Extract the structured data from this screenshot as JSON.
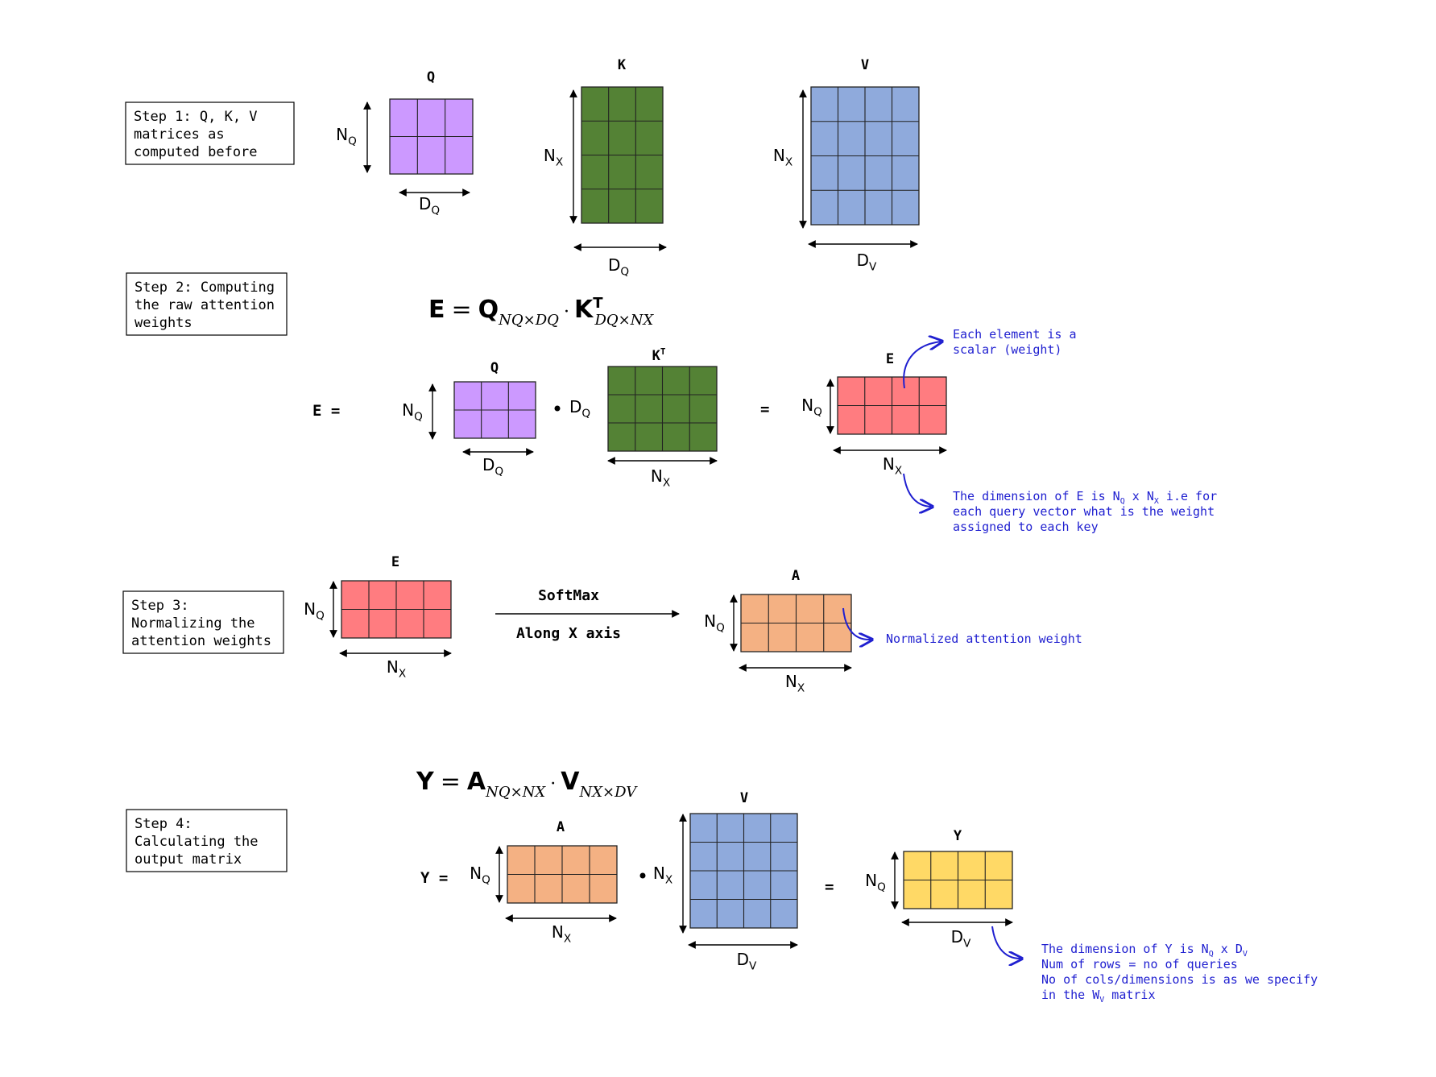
{
  "colors": {
    "q": "#cc99ff",
    "k": "#548235",
    "v": "#8faadc",
    "e": "#ff7c80",
    "a": "#f4b183",
    "y": "#ffd966",
    "note": "#1f1fd0",
    "line": "#000000"
  },
  "steps": [
    {
      "id": "step1",
      "lines": [
        "Step 1: Q, K, V",
        "matrices as",
        "computed before"
      ]
    },
    {
      "id": "step2",
      "lines": [
        "Step 2: Computing",
        "the raw attention",
        "weights"
      ]
    },
    {
      "id": "step3",
      "lines": [
        "Step 3:",
        "Normalizing the",
        "attention weights"
      ]
    },
    {
      "id": "step4",
      "lines": [
        "Step 4:",
        "Calculating the",
        "output matrix"
      ]
    }
  ],
  "symbols": {
    "N": "N",
    "D": "D",
    "Q": "Q",
    "X": "X",
    "V": "V",
    "dot": "•",
    "eq": "=",
    "T": "T"
  },
  "matrix_titles": {
    "q": "Q",
    "k": "K",
    "v": "V",
    "kt": "K",
    "e": "E",
    "a": "A",
    "y": "Y"
  },
  "matrix_shapes": {
    "q": {
      "rows": 2,
      "cols": 3
    },
    "k": {
      "rows": 4,
      "cols": 3
    },
    "v": {
      "rows": 4,
      "cols": 4
    },
    "kt": {
      "rows": 3,
      "cols": 4
    },
    "e": {
      "rows": 2,
      "cols": 4
    },
    "a": {
      "rows": 2,
      "cols": 4
    },
    "y": {
      "rows": 2,
      "cols": 4
    }
  },
  "equations": {
    "e_lhs": "E =",
    "y_lhs": "Y =",
    "eq2": {
      "lhs": "E",
      "a": "Q",
      "a_sub": "N_Q×D_Q",
      "b": "K",
      "b_sup": "T",
      "b_sub": "D_Q×N_X"
    },
    "eq4": {
      "lhs": "Y",
      "a": "A",
      "a_sub": "N_Q×N_X",
      "b": "V",
      "b_sub": "N_X×D_V"
    }
  },
  "softmax": {
    "label": "SoftMax",
    "sublabel": "Along X axis"
  },
  "notes": {
    "e_element": [
      "Each element is a",
      "scalar (weight)"
    ],
    "e_dimension": [
      "The dimension of E is N_Q x N_X i.e for",
      "each query vector what is the weight",
      "assigned to each key"
    ],
    "a_norm": "Normalized attention weight",
    "y_dimension": [
      "The dimension of Y is N_Q x D_V",
      "Num of rows = no of queries",
      "No of cols/dimensions is as we specify",
      "in the W_V matrix"
    ]
  }
}
